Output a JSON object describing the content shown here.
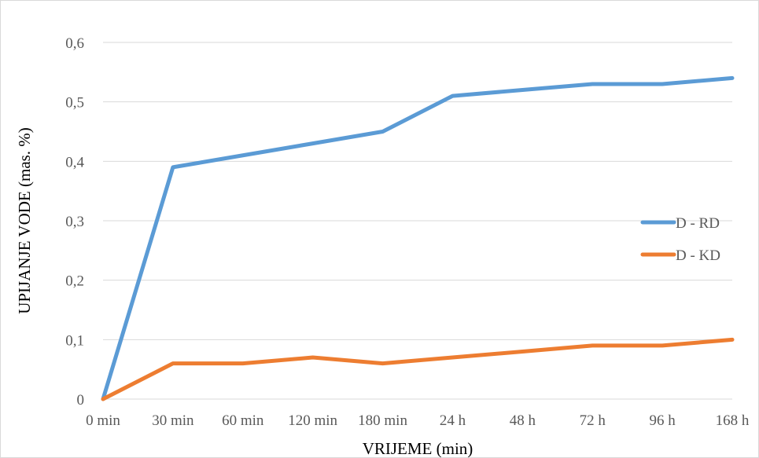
{
  "chart_data": {
    "type": "line",
    "title": "",
    "xlabel": "VRIJEME (min)",
    "ylabel": "UPIJANJE VODE (mas. %)",
    "categories": [
      "0 min",
      "30 min",
      "60 min",
      "120 min",
      "180 min",
      "24 h",
      "48 h",
      "72 h",
      "96 h",
      "168 h"
    ],
    "ylim": [
      0,
      0.6
    ],
    "yticks": [
      0,
      0.1,
      0.2,
      0.3,
      0.4,
      0.5,
      0.6
    ],
    "ytick_labels": [
      "0",
      "0,1",
      "0,2",
      "0,3",
      "0,4",
      "0,5",
      "0,6"
    ],
    "grid": true,
    "legend_position": "right",
    "series": [
      {
        "name": "D - RD",
        "color": "#5b9bd5",
        "values": [
          0,
          0.39,
          0.41,
          0.43,
          0.45,
          0.51,
          0.52,
          0.53,
          0.53,
          0.54
        ]
      },
      {
        "name": "D - KD",
        "color": "#ed7d31",
        "values": [
          0,
          0.06,
          0.06,
          0.07,
          0.06,
          0.07,
          0.08,
          0.09,
          0.09,
          0.1
        ]
      }
    ]
  }
}
